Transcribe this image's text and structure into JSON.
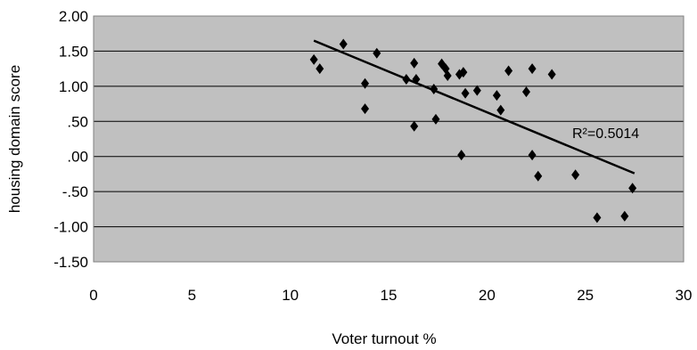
{
  "chart_data": {
    "type": "scatter",
    "title": "",
    "xlabel": "Voter turnout %",
    "ylabel": "housing domain score",
    "xlim": [
      0,
      30
    ],
    "ylim": [
      -1.5,
      2.0
    ],
    "x_ticks": [
      "0",
      "5",
      "10",
      "15",
      "20",
      "25",
      "30"
    ],
    "y_ticks": [
      "2.00",
      "1.50",
      "1.00",
      ".50",
      ".00",
      "-.50",
      "-1.00",
      "-1.50"
    ],
    "grid": true,
    "legend": "none",
    "points": [
      {
        "x": 11.2,
        "y": 1.38
      },
      {
        "x": 11.5,
        "y": 1.25
      },
      {
        "x": 12.7,
        "y": 1.6
      },
      {
        "x": 13.8,
        "y": 1.04
      },
      {
        "x": 13.8,
        "y": 0.68
      },
      {
        "x": 14.4,
        "y": 1.47
      },
      {
        "x": 15.9,
        "y": 1.1
      },
      {
        "x": 16.3,
        "y": 1.33
      },
      {
        "x": 16.4,
        "y": 1.1
      },
      {
        "x": 16.3,
        "y": 0.43
      },
      {
        "x": 17.3,
        "y": 0.96
      },
      {
        "x": 17.4,
        "y": 0.53
      },
      {
        "x": 17.7,
        "y": 1.32
      },
      {
        "x": 17.9,
        "y": 1.25
      },
      {
        "x": 18.0,
        "y": 1.15
      },
      {
        "x": 18.6,
        "y": 1.17
      },
      {
        "x": 18.8,
        "y": 1.2
      },
      {
        "x": 18.9,
        "y": 0.9
      },
      {
        "x": 18.7,
        "y": 0.02
      },
      {
        "x": 19.5,
        "y": 0.94
      },
      {
        "x": 20.5,
        "y": 0.87
      },
      {
        "x": 20.7,
        "y": 0.66
      },
      {
        "x": 21.1,
        "y": 1.22
      },
      {
        "x": 22.0,
        "y": 0.92
      },
      {
        "x": 22.3,
        "y": 1.25
      },
      {
        "x": 22.3,
        "y": 0.02
      },
      {
        "x": 22.6,
        "y": -0.28
      },
      {
        "x": 23.3,
        "y": 1.17
      },
      {
        "x": 24.5,
        "y": -0.26
      },
      {
        "x": 25.6,
        "y": -0.87
      },
      {
        "x": 27.0,
        "y": -0.85
      },
      {
        "x": 27.4,
        "y": -0.45
      }
    ],
    "trendline": {
      "x": [
        11.2,
        27.5
      ],
      "y": [
        1.65,
        -0.24
      ]
    },
    "annotation": "R²=0.5014",
    "colors": {
      "plot_bg": "#c0c0c0",
      "point": "#000000",
      "line": "#000000",
      "grid": "#000000"
    }
  }
}
